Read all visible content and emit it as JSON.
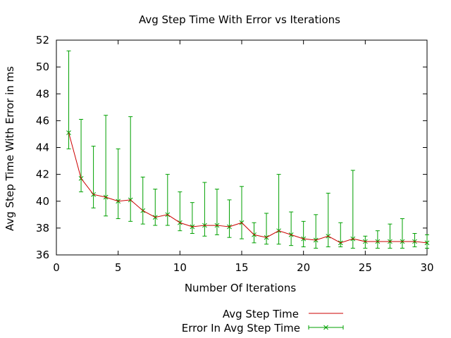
{
  "chart_data": {
    "type": "line",
    "title": "Avg Step Time With Error vs Iterations",
    "xlabel": "Number Of Iterations",
    "ylabel": "Avg Step Time With Error in ms",
    "xlim": [
      0,
      30
    ],
    "ylim": [
      36,
      52
    ],
    "xticks": [
      0,
      5,
      10,
      15,
      20,
      25,
      30
    ],
    "yticks": [
      36,
      38,
      40,
      42,
      44,
      46,
      48,
      50,
      52
    ],
    "grid": false,
    "legend_position": "bottom-center",
    "series": [
      {
        "name": "Avg Step Time",
        "color": "#cc0000",
        "x": [
          1,
          2,
          3,
          4,
          5,
          6,
          7,
          8,
          9,
          10,
          11,
          12,
          13,
          14,
          15,
          16,
          17,
          18,
          19,
          20,
          21,
          22,
          23,
          24,
          25,
          26,
          27,
          28,
          29,
          30
        ],
        "y": [
          45.1,
          41.7,
          40.5,
          40.3,
          40.0,
          40.1,
          39.3,
          38.8,
          39.0,
          38.4,
          38.1,
          38.2,
          38.2,
          38.1,
          38.4,
          37.5,
          37.3,
          37.8,
          37.5,
          37.2,
          37.1,
          37.4,
          36.9,
          37.2,
          37.0,
          37.0,
          37.0,
          37.0,
          37.0,
          36.9
        ]
      },
      {
        "name": "Error In Avg Step Time",
        "color": "#00a000",
        "marker": "x",
        "x": [
          1,
          2,
          3,
          4,
          5,
          6,
          7,
          8,
          9,
          10,
          11,
          12,
          13,
          14,
          15,
          16,
          17,
          18,
          19,
          20,
          21,
          22,
          23,
          24,
          25,
          26,
          27,
          28,
          29,
          30
        ],
        "y": [
          45.1,
          41.7,
          40.5,
          40.3,
          40.0,
          40.1,
          39.3,
          38.8,
          39.0,
          38.4,
          38.1,
          38.2,
          38.2,
          38.1,
          38.4,
          37.5,
          37.3,
          37.8,
          37.5,
          37.2,
          37.1,
          37.4,
          36.9,
          37.2,
          37.0,
          37.0,
          37.0,
          37.0,
          37.0,
          36.9
        ],
        "low": [
          43.9,
          40.7,
          39.5,
          38.9,
          38.7,
          38.5,
          38.3,
          38.2,
          38.2,
          37.8,
          37.6,
          37.4,
          37.5,
          37.3,
          37.2,
          36.9,
          36.8,
          36.8,
          36.7,
          36.6,
          36.5,
          36.6,
          36.6,
          36.5,
          36.5,
          36.5,
          36.5,
          36.5,
          36.6,
          36.5
        ],
        "high": [
          51.2,
          46.1,
          44.1,
          46.4,
          43.9,
          46.3,
          41.8,
          40.9,
          42.0,
          40.7,
          39.9,
          41.4,
          40.9,
          40.1,
          41.1,
          38.4,
          39.1,
          42.0,
          39.2,
          38.5,
          39.0,
          40.6,
          38.4,
          42.3,
          37.4,
          37.8,
          38.3,
          38.7,
          37.6,
          37.5
        ]
      }
    ]
  }
}
